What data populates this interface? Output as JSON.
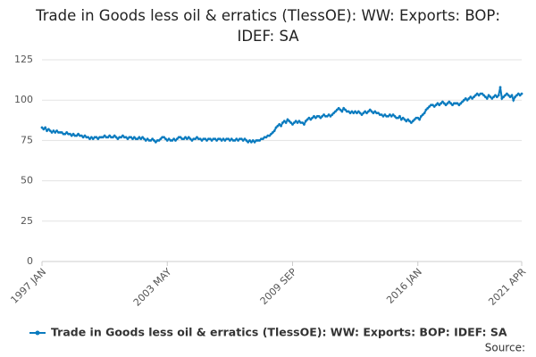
{
  "chart_data": {
    "type": "line",
    "title": "Trade in Goods less oil & erratics (TlessOE): WW: Exports: BOP: IDEF: SA",
    "source": "Source:",
    "categories": [
      "1997 JAN",
      null,
      null,
      null,
      null,
      null,
      null,
      null,
      null,
      null,
      null,
      null,
      null,
      null,
      null,
      null,
      null,
      null,
      null,
      null,
      null,
      null,
      null,
      null,
      null,
      null,
      null,
      null,
      null,
      null,
      null,
      null,
      null,
      null,
      null,
      null,
      null,
      null,
      null,
      null,
      null,
      null,
      null,
      null,
      null,
      null,
      null,
      null,
      null,
      null,
      null,
      null,
      null,
      null,
      null,
      null,
      null,
      null,
      null,
      null,
      null,
      null,
      null,
      null,
      null,
      null,
      null,
      null,
      null,
      null,
      null,
      null,
      null,
      null,
      null,
      null,
      "2003 MAY",
      null,
      null,
      null,
      null,
      null,
      null,
      null,
      null,
      null,
      null,
      null,
      null,
      null,
      null,
      null,
      null,
      null,
      null,
      null,
      null,
      null,
      null,
      null,
      null,
      null,
      null,
      null,
      null,
      null,
      null,
      null,
      null,
      null,
      null,
      null,
      null,
      null,
      null,
      null,
      null,
      null,
      null,
      null,
      null,
      null,
      null,
      null,
      null,
      null,
      null,
      null,
      null,
      null,
      null,
      null,
      null,
      null,
      null,
      null,
      null,
      null,
      null,
      null,
      null,
      null,
      null,
      null,
      null,
      null,
      null,
      null,
      null,
      null,
      null,
      null,
      "2009 SEP",
      null,
      null,
      null,
      null,
      null,
      null,
      null,
      null,
      null,
      null,
      null,
      null,
      null,
      null,
      null,
      null,
      null,
      null,
      null,
      null,
      null,
      null,
      null,
      null,
      null,
      null,
      null,
      null,
      null,
      null,
      null,
      null,
      null,
      null,
      null,
      null,
      null,
      null,
      null,
      null,
      null,
      null,
      null,
      null,
      null,
      null,
      null,
      null,
      null,
      null,
      null,
      null,
      null,
      null,
      null,
      null,
      null,
      null,
      null,
      null,
      null,
      null,
      null,
      null,
      null,
      null,
      null,
      null,
      null,
      null,
      null,
      null,
      null,
      null,
      null,
      "2016 JAN",
      null,
      null,
      null,
      null,
      null,
      null,
      null,
      null,
      null,
      null,
      null,
      null,
      null,
      null,
      null,
      null,
      null,
      null,
      null,
      null,
      null,
      null,
      null,
      null,
      null,
      null,
      null,
      null,
      null,
      null,
      null,
      null,
      null,
      null,
      null,
      null,
      null,
      null,
      null,
      null,
      null,
      null,
      null,
      null,
      null,
      null,
      null,
      null,
      null,
      null,
      null,
      null,
      null,
      null,
      null,
      null,
      null,
      null,
      null,
      null,
      null,
      null,
      "2021 APR"
    ],
    "series": [
      {
        "name": "Trade in Goods less oil & erratics (TlessOE): WW: Exports: BOP: IDEF: SA",
        "color": "#0a7bbf",
        "values": [
          83,
          82,
          83,
          81,
          82,
          81,
          80,
          81,
          80,
          81,
          80,
          80,
          80,
          79,
          79,
          80,
          79,
          79,
          78,
          79,
          78,
          78,
          79,
          78,
          78,
          77,
          78,
          77,
          77,
          76,
          77,
          76,
          77,
          77,
          76,
          77,
          77,
          77,
          78,
          77,
          77,
          78,
          77,
          77,
          78,
          77,
          76,
          77,
          77,
          78,
          77,
          77,
          76,
          77,
          77,
          76,
          77,
          76,
          76,
          77,
          76,
          77,
          76,
          75,
          76,
          75,
          75,
          76,
          75,
          74,
          75,
          75,
          76,
          77,
          77,
          76,
          75,
          76,
          75,
          75,
          76,
          75,
          76,
          77,
          77,
          76,
          76,
          77,
          76,
          77,
          76,
          75,
          76,
          76,
          77,
          76,
          76,
          75,
          76,
          76,
          75,
          76,
          76,
          75,
          76,
          76,
          75,
          76,
          76,
          75,
          76,
          75,
          76,
          76,
          75,
          76,
          75,
          75,
          76,
          75,
          76,
          76,
          75,
          76,
          75,
          74,
          75,
          74,
          75,
          74,
          75,
          75,
          75,
          76,
          76,
          77,
          77,
          78,
          78,
          79,
          80,
          81,
          83,
          84,
          85,
          84,
          86,
          87,
          86,
          88,
          87,
          86,
          85,
          86,
          87,
          86,
          87,
          86,
          86,
          85,
          87,
          88,
          89,
          88,
          89,
          90,
          89,
          90,
          90,
          89,
          90,
          91,
          90,
          90,
          91,
          90,
          91,
          92,
          93,
          94,
          95,
          94,
          93,
          95,
          94,
          93,
          93,
          92,
          93,
          92,
          93,
          92,
          93,
          92,
          91,
          92,
          93,
          92,
          93,
          94,
          93,
          92,
          93,
          92,
          92,
          91,
          91,
          90,
          91,
          90,
          90,
          91,
          90,
          91,
          90,
          89,
          89,
          90,
          88,
          89,
          88,
          87,
          88,
          87,
          86,
          87,
          88,
          89,
          89,
          88,
          90,
          91,
          92,
          94,
          95,
          96,
          97,
          97,
          96,
          97,
          98,
          97,
          98,
          99,
          98,
          97,
          98,
          99,
          98,
          97,
          98,
          98,
          98,
          97,
          98,
          99,
          100,
          101,
          100,
          101,
          102,
          101,
          102,
          103,
          104,
          103,
          104,
          104,
          103,
          102,
          101,
          103,
          102,
          101,
          102,
          103,
          102,
          103,
          108,
          101,
          102,
          103,
          104,
          103,
          102,
          103,
          100,
          102,
          103,
          104,
          103,
          104
        ]
      }
    ],
    "ylim": [
      0,
      125
    ],
    "yticks": [
      0,
      25,
      50,
      75,
      100,
      125
    ],
    "grid": true
  }
}
